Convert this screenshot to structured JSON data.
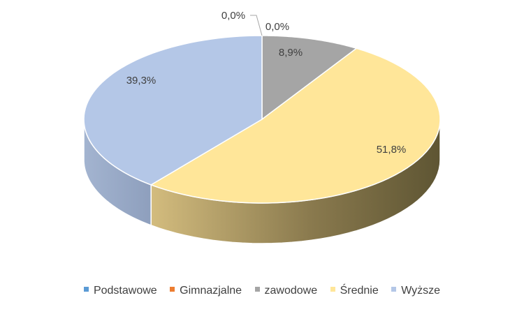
{
  "chart_data": {
    "type": "pie",
    "style": "3d",
    "title": "",
    "categories": [
      "Podstawowe",
      "Gimnazjalne",
      "zawodowe",
      "Średnie",
      "Wyższe"
    ],
    "values": [
      0.0,
      0.0,
      8.9,
      51.8,
      39.3
    ],
    "labels": [
      "0,0%",
      "0,0%",
      "8,9%",
      "51,8%",
      "39,3%"
    ],
    "unit": "%",
    "colors": [
      "#5B9BD5",
      "#ED7D31",
      "#A5A5A5",
      "#FFE699",
      "#B4C7E7"
    ],
    "legend_position": "bottom"
  }
}
